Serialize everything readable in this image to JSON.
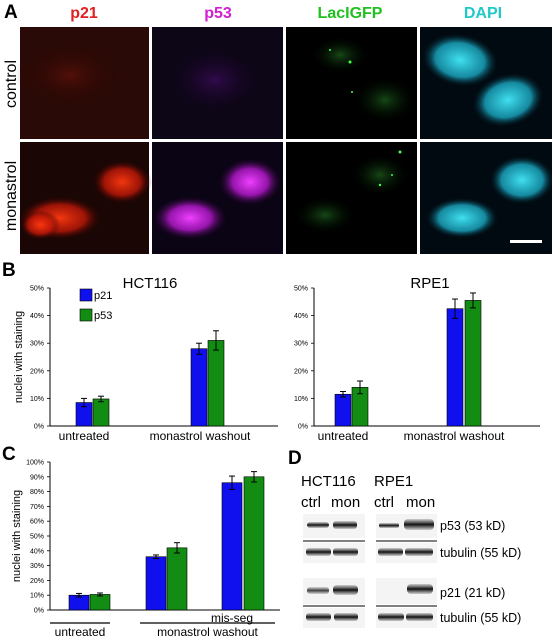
{
  "panels": {
    "A": {
      "letter": "A",
      "channels": [
        {
          "label": "p21",
          "color": "#e02020"
        },
        {
          "label": "p53",
          "color": "#d020d0"
        },
        {
          "label": "LacIGFP",
          "color": "#20c020"
        },
        {
          "label": "DAPI",
          "color": "#20c8c8"
        }
      ],
      "rows": [
        "control",
        "monastrol"
      ]
    },
    "B": {
      "letter": "B"
    },
    "C": {
      "letter": "C"
    },
    "D": {
      "letter": "D",
      "lines": [
        "HCT116",
        "RPE1"
      ],
      "lanes": [
        "ctrl",
        "mon",
        "ctrl",
        "mon"
      ],
      "blots": [
        "p53 (53 kD)",
        "tubulin (55 kD)",
        "p21 (21 kD)",
        "tubulin (55 kD)"
      ]
    }
  },
  "colors": {
    "p21": "#1010ee",
    "p53": "#128c12"
  },
  "chart_data": [
    {
      "id": "B-HCT116",
      "type": "bar",
      "title": "HCT116",
      "ylabel": "nuclei with staining",
      "ylim": [
        0,
        50
      ],
      "yticks": [
        "0%",
        "10%",
        "20%",
        "30%",
        "40%",
        "50%"
      ],
      "categories": [
        "untreated",
        "monastrol washout"
      ],
      "series": [
        {
          "name": "p21",
          "values": [
            8.5,
            28
          ],
          "errors": [
            1.5,
            2.0
          ]
        },
        {
          "name": "p53",
          "values": [
            9.8,
            31
          ],
          "errors": [
            1.0,
            3.5
          ]
        }
      ],
      "legend": "top-left"
    },
    {
      "id": "B-RPE1",
      "type": "bar",
      "title": "RPE1",
      "ylim": [
        0,
        50
      ],
      "yticks": [
        "0%",
        "10%",
        "20%",
        "30%",
        "40%",
        "50%"
      ],
      "categories": [
        "untreated",
        "monastrol washout"
      ],
      "series": [
        {
          "name": "p21",
          "values": [
            11.5,
            42.5
          ],
          "errors": [
            1.0,
            3.5
          ]
        },
        {
          "name": "p53",
          "values": [
            14,
            45.5
          ],
          "errors": [
            2.3,
            2.7
          ]
        }
      ]
    },
    {
      "id": "C",
      "type": "bar",
      "ylabel": "nuclei with staining",
      "ylim": [
        0,
        100
      ],
      "yticks": [
        "0%",
        "10%",
        "20%",
        "30%",
        "40%",
        "50%",
        "60%",
        "70%",
        "80%",
        "90%",
        "100%"
      ],
      "categories": [
        "untreated",
        "monastrol washout",
        "mis-seg"
      ],
      "group_labels": [
        "untreated",
        "monastrol washout"
      ],
      "series": [
        {
          "name": "p21",
          "values": [
            10,
            36,
            86
          ],
          "errors": [
            1.2,
            1.2,
            4.5
          ]
        },
        {
          "name": "p53",
          "values": [
            10.5,
            42,
            90
          ],
          "errors": [
            1.0,
            3.5,
            3.5
          ]
        }
      ]
    }
  ]
}
